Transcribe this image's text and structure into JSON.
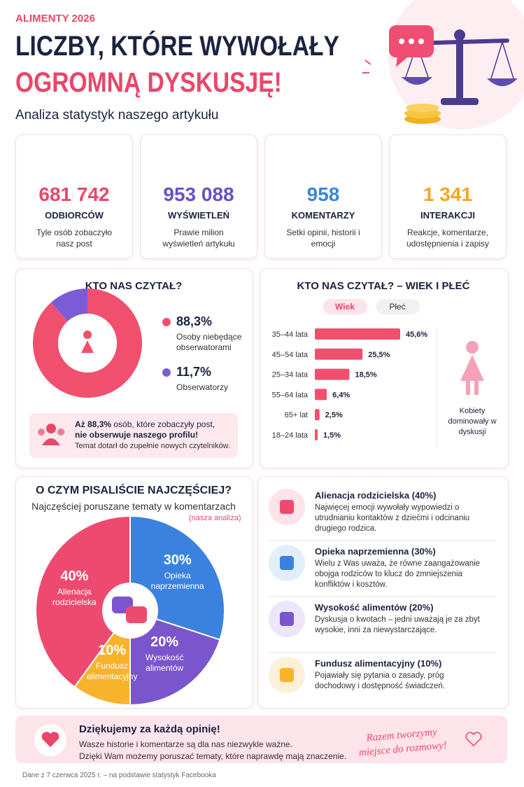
{
  "header": {
    "kicker": "ALIMENTY 2026",
    "title_line1": "LICZBY, KTÓRE WYWOŁAŁY",
    "title_line2": "OGROMNĄ DYSKUSJĘ!",
    "subtitle": "Analiza statystyk naszego artykułu"
  },
  "stats": [
    {
      "value": "681 742",
      "label": "ODBIORCÓW",
      "desc": "Tyle osób zobaczyło nasz post",
      "color": "#e8476a"
    },
    {
      "value": "953 088",
      "label": "WYŚWIETLEŃ",
      "desc": "Prawie milion wyświetleń artykułu",
      "color": "#6a4fc7"
    },
    {
      "value": "958",
      "label": "KOMENTARZY",
      "desc": "Setki opinii, historii i emocji",
      "color": "#3a86e0"
    },
    {
      "value": "1 341",
      "label": "INTERAKCJI",
      "desc": "Reakcje, komentarze, udostępnienia i zapisy",
      "color": "#f5a623"
    }
  ],
  "chart_data": [
    {
      "type": "donut",
      "title": "KTO NAS CZYTAŁ?",
      "categories": [
        "Osoby niebędące obserwatorami",
        "Obserwatorzy"
      ],
      "values": [
        88.3,
        11.7
      ],
      "value_labels": [
        "88,3%",
        "11,7%"
      ],
      "colors": [
        "#f0506e",
        "#7b5cd6"
      ]
    },
    {
      "type": "bar",
      "title": "KTO NAS CZYTAŁ? – WIEK I PŁEĆ",
      "tabs": [
        "Wiek",
        "Płeć"
      ],
      "categories": [
        "35–44 lata",
        "45–54 lata",
        "25–34 lata",
        "55–64 lata",
        "65+ lat",
        "18–24 lata"
      ],
      "values": [
        45.6,
        25.5,
        18.5,
        6.4,
        2.5,
        1.5
      ],
      "value_labels": [
        "45,6%",
        "25,5%",
        "18,5%",
        "6,4%",
        "2,5%",
        "1,5%"
      ],
      "color": "#f0506e"
    },
    {
      "type": "pie",
      "title": "O CZYM PISALIŚCIE NAJCZĘŚCIEJ?",
      "subtitle": "Najczęściej poruszane tematy w komentarzach",
      "note": "(nasza analiza)",
      "categories": [
        "Alienacja rodzicielska",
        "Opieka naprzemienna",
        "Wysokość alimentów",
        "Fundusz alimentacyjny"
      ],
      "values": [
        40,
        30,
        20,
        10
      ],
      "value_labels": [
        "40%",
        "30%",
        "20%",
        "10%"
      ],
      "colors": [
        "#ee4a70",
        "#3b82e0",
        "#7b55cc",
        "#f7b32b"
      ]
    }
  ],
  "callout": {
    "bold1": "Aż 88,3%",
    "text1": "osób, które zobaczyły post,",
    "bold2": "nie obserwuje naszego profilu!",
    "text2": "Temat dotarł do zupełnie nowych czytelników."
  },
  "gender_note": "Kobiety dominowały w dyskusji",
  "topics": [
    {
      "title": "Alienacja rodzicielska (40%)",
      "desc": "Najwięcej emocji wywołały wypowiedzi o utrudnianiu kontaktów z dziećmi i odcinaniu drugiego rodzica."
    },
    {
      "title": "Opieka naprzemienna (30%)",
      "desc": "Wielu z Was uważa, że równe zaangażowanie obojga rodziców to klucz do zmniejszenia konfliktów i kosztów."
    },
    {
      "title": "Wysokość alimentów (20%)",
      "desc": "Dyskusja o kwotach – jedni uważają je za zbyt wysokie, inni za niewystarczające."
    },
    {
      "title": "Fundusz alimentacyjny (10%)",
      "desc": "Pojawiały się pytania o zasady, próg dochodowy i dostępność świadczeń."
    }
  ],
  "footer": {
    "title": "Dziękujemy za każdą opinię!",
    "line1": "Wasze historie i komentarze są dla nas niezwykle ważne.",
    "line2": "Dzięki Wam możemy poruszać tematy, które naprawdę mają znaczenie.",
    "slogan": "Razem tworzymy miejsce do rozmowy!"
  },
  "source": "Dane z 7 czerwca 2025 r. – na podstawie statystyk Facebooka"
}
